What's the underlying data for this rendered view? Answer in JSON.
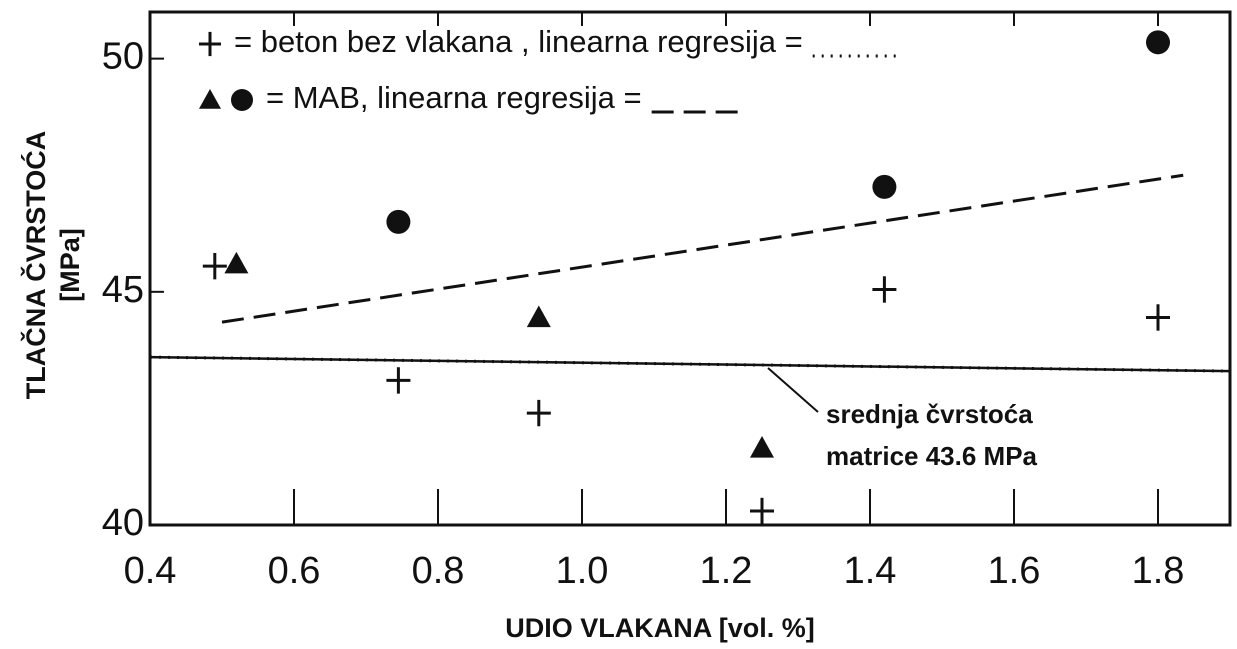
{
  "chart_data": {
    "type": "scatter",
    "xlabel": "UDIO VLAKANA [vol. %]",
    "ylabel": [
      "TLAČNA ČVRSTOĆA",
      "[MPa]"
    ],
    "xlim": [
      0.4,
      1.9
    ],
    "ylim": [
      40,
      51
    ],
    "xticks": [
      0.4,
      0.6,
      0.8,
      {
        "value": 1.0,
        "label": "1.0"
      },
      1.2,
      1.4,
      1.6,
      1.8
    ],
    "yticks": [
      40,
      45,
      50
    ],
    "series": [
      {
        "marker": "plus",
        "color": "#111111",
        "x": [
          0.49,
          0.745,
          0.94,
          1.25,
          1.42,
          1.8
        ],
        "values": [
          45.55,
          43.1,
          42.4,
          40.3,
          45.05,
          44.45
        ]
      },
      {
        "marker": "triangle",
        "color": "#111111",
        "x": [
          0.52,
          0.94,
          1.25
        ],
        "values": [
          45.6,
          44.45,
          41.65
        ]
      },
      {
        "marker": "circle",
        "color": "#111111",
        "x": [
          0.745,
          1.42,
          1.8
        ],
        "values": [
          46.5,
          47.25,
          50.35
        ]
      }
    ],
    "lines": [
      {
        "style": "dashed",
        "x": [
          0.5,
          1.835
        ],
        "values": [
          44.35,
          47.5
        ]
      },
      {
        "style": "dotted",
        "x": [
          0.4,
          1.9
        ],
        "values": [
          43.6,
          43.3
        ]
      }
    ],
    "legend": [
      {
        "markers": [
          "plus"
        ],
        "text": "= beton bez vlakana  ,   linearna regresija =",
        "line": "dotted"
      },
      {
        "markers": [
          "triangle",
          "circle"
        ],
        "text": "= MAB, linearna regresija =",
        "line": "dashed"
      }
    ],
    "annotation": [
      "srednja čvrstoća",
      "matrice 43.6 MPa"
    ]
  }
}
